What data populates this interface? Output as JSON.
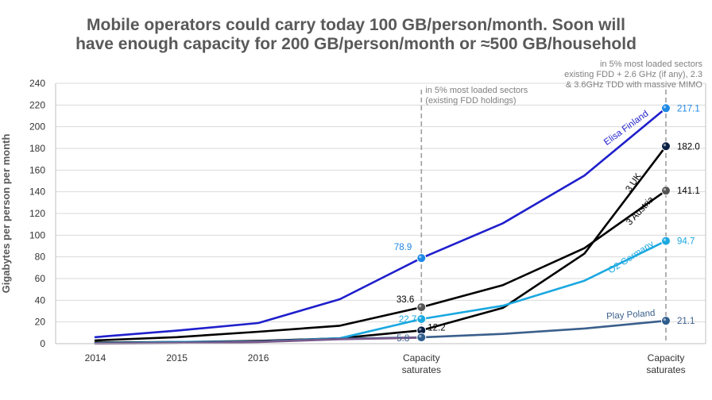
{
  "chart_data": {
    "type": "line",
    "title_lines": [
      "Mobile operators could carry today 100 GB/person/month. Soon will",
      "have enough capacity for 200 GB/person/month or ≈500 GB/household"
    ],
    "ylabel": "Gigabytes per person per month",
    "ylim": [
      0,
      240
    ],
    "yticks": [
      0,
      20,
      40,
      60,
      80,
      100,
      120,
      140,
      160,
      180,
      200,
      220,
      240
    ],
    "xlim": [
      0,
      7
    ],
    "x_ticks": [
      {
        "x": 0,
        "label": "2014"
      },
      {
        "x": 1,
        "label": "2015"
      },
      {
        "x": 2,
        "label": "2016"
      },
      {
        "x": 4,
        "label": "Capacity",
        "label2": "saturates"
      },
      {
        "x": 7,
        "label": "Capacity",
        "label2": "saturates"
      }
    ],
    "vlines": [
      {
        "x": 4,
        "note": [
          "in 5% most loaded sectors",
          "(existing FDD holdings)"
        ]
      },
      {
        "x": 7,
        "note": [
          "in 5% most loaded sectors",
          "existing FDD + 2.6 GHz (if any), 2.3",
          "& 3.6GHz TDD with massive MIMO"
        ]
      }
    ],
    "series": [
      {
        "name": "Elisa Finland",
        "color": "#1f1fcc",
        "marker": "#1e88e5",
        "x": [
          0,
          1,
          2,
          3,
          4,
          5,
          6,
          7
        ],
        "values": [
          6,
          12,
          19,
          41,
          78.9,
          111,
          155,
          217.1
        ],
        "labels": [
          {
            "x": 4,
            "text": "78.9",
            "color": "#1e88e5"
          },
          {
            "x": 7,
            "text": "217.1",
            "color": "#1e88e5"
          }
        ]
      },
      {
        "name": "3 UK",
        "color": "#000000",
        "marker": "#0a1f44",
        "x": [
          0,
          1,
          2,
          3,
          4,
          5,
          6,
          7
        ],
        "values": [
          1,
          1.5,
          2.5,
          5,
          12.2,
          33,
          83,
          182.0
        ],
        "labels": [
          {
            "x": 4,
            "text": "12.2",
            "color": "#000000"
          },
          {
            "x": 7,
            "text": "182.0",
            "color": "#000000"
          }
        ]
      },
      {
        "name": "3 Austria",
        "color": "#000000",
        "marker": "#555555",
        "x": [
          0,
          1,
          2,
          3,
          4,
          5,
          6,
          7
        ],
        "values": [
          3,
          6,
          11,
          16.5,
          33.6,
          54,
          88,
          141.1
        ],
        "labels": [
          {
            "x": 4,
            "text": "33.6",
            "color": "#000000"
          },
          {
            "x": 7,
            "text": "141.1",
            "color": "#000000"
          }
        ]
      },
      {
        "name": "O2 Germany",
        "color": "#1ba8e0",
        "marker": "#1ba8e0",
        "x": [
          0,
          1,
          2,
          3,
          4,
          5,
          6,
          7
        ],
        "values": [
          0.5,
          1.5,
          2,
          5,
          22.7,
          35,
          58,
          94.7
        ],
        "labels": [
          {
            "x": 4,
            "text": "22.7",
            "color": "#1ba8e0"
          },
          {
            "x": 7,
            "text": "94.7",
            "color": "#1ba8e0"
          }
        ]
      },
      {
        "name": "Play Poland",
        "color": "#3a5f8c",
        "marker": "#2e5d8e",
        "x": [
          0,
          1,
          2,
          3,
          4,
          5,
          6,
          7
        ],
        "values": [
          0.5,
          1,
          2,
          4.5,
          5.8,
          9,
          14,
          21.1
        ],
        "labels": [
          {
            "x": 4,
            "text": "5.8",
            "color": "#3a5f8c"
          },
          {
            "x": 7,
            "text": "21.1",
            "color": "#3a5f8c"
          }
        ]
      },
      {
        "name": "",
        "color": "#7a5a8c",
        "marker": "",
        "x": [
          0,
          1,
          2,
          3,
          4
        ],
        "values": [
          0,
          0.5,
          1.5,
          4,
          5.5
        ],
        "labels": []
      }
    ]
  }
}
